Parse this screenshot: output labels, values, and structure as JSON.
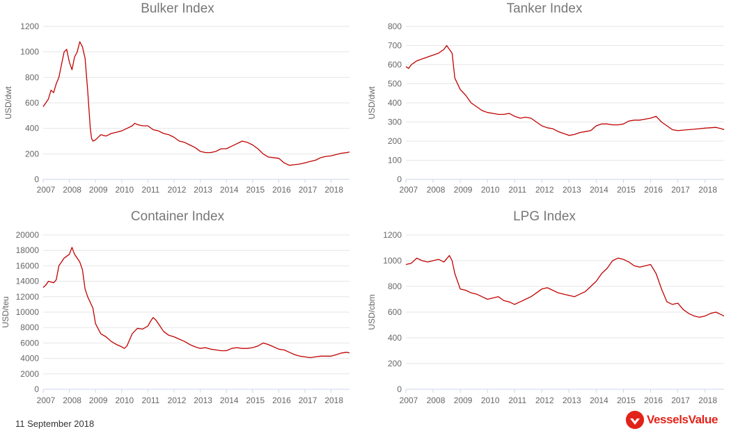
{
  "footer": {
    "date": "11 September 2018",
    "brand": "VesselsValue"
  },
  "colors": {
    "line": "#c00000",
    "grid": "#e6e6e6",
    "axis_text": "#666666",
    "title_text": "#777777",
    "brand": "#e2231a"
  },
  "chart_data": [
    {
      "type": "line",
      "title": "Bulker Index",
      "ylabel": "USD/dwt",
      "xlabel": "",
      "ylim": [
        0,
        1200
      ],
      "yticks": [
        0,
        200,
        400,
        600,
        800,
        1000,
        1200
      ],
      "xlim": [
        2007.0,
        2018.7
      ],
      "xticks": [
        "2007",
        "2008",
        "2009",
        "2010",
        "2011",
        "2012",
        "2013",
        "2014",
        "2015",
        "2016",
        "2017",
        "2018"
      ],
      "grid": true,
      "series": [
        {
          "x": [
            2007.0,
            2007.1,
            2007.2,
            2007.3,
            2007.4,
            2007.5,
            2007.6,
            2007.7,
            2007.8,
            2007.9,
            2008.0,
            2008.1,
            2008.2,
            2008.3,
            2008.4,
            2008.5,
            2008.6,
            2008.7,
            2008.8,
            2008.85,
            2008.9,
            2009.0,
            2009.2,
            2009.4,
            2009.6,
            2009.8,
            2010.0,
            2010.2,
            2010.4,
            2010.5,
            2010.6,
            2010.8,
            2011.0,
            2011.2,
            2011.4,
            2011.6,
            2011.8,
            2012.0,
            2012.2,
            2012.4,
            2012.6,
            2012.8,
            2013.0,
            2013.2,
            2013.4,
            2013.6,
            2013.8,
            2014.0,
            2014.2,
            2014.4,
            2014.6,
            2014.8,
            2015.0,
            2015.2,
            2015.4,
            2015.6,
            2015.8,
            2016.0,
            2016.2,
            2016.4,
            2016.6,
            2016.8,
            2017.0,
            2017.2,
            2017.4,
            2017.6,
            2017.8,
            2018.0,
            2018.2,
            2018.4,
            2018.6,
            2018.7
          ],
          "y": [
            570,
            600,
            630,
            700,
            680,
            750,
            800,
            900,
            1000,
            1020,
            920,
            860,
            960,
            1000,
            1080,
            1040,
            950,
            700,
            400,
            320,
            300,
            310,
            350,
            340,
            360,
            370,
            380,
            400,
            420,
            440,
            430,
            420,
            420,
            390,
            380,
            360,
            350,
            330,
            300,
            290,
            270,
            250,
            220,
            210,
            210,
            220,
            240,
            240,
            260,
            280,
            300,
            290,
            270,
            240,
            200,
            175,
            170,
            165,
            130,
            110,
            115,
            120,
            130,
            140,
            150,
            170,
            180,
            185,
            195,
            205,
            210,
            215
          ]
        }
      ]
    },
    {
      "type": "line",
      "title": "Tanker Index",
      "ylabel": "USD/dwt",
      "xlabel": "",
      "ylim": [
        0,
        800
      ],
      "yticks": [
        0,
        100,
        200,
        300,
        400,
        500,
        600,
        700,
        800
      ],
      "xlim": [
        2007.0,
        2018.7
      ],
      "xticks": [
        "2007",
        "2008",
        "2009",
        "2010",
        "2011",
        "2012",
        "2013",
        "2014",
        "2015",
        "2016",
        "2017",
        "2018"
      ],
      "grid": true,
      "series": [
        {
          "x": [
            2007.0,
            2007.1,
            2007.2,
            2007.3,
            2007.4,
            2007.6,
            2007.8,
            2008.0,
            2008.2,
            2008.4,
            2008.5,
            2008.6,
            2008.7,
            2008.8,
            2009.0,
            2009.2,
            2009.4,
            2009.6,
            2009.8,
            2010.0,
            2010.2,
            2010.4,
            2010.6,
            2010.8,
            2011.0,
            2011.2,
            2011.4,
            2011.6,
            2011.8,
            2012.0,
            2012.2,
            2012.4,
            2012.6,
            2012.8,
            2013.0,
            2013.2,
            2013.4,
            2013.6,
            2013.8,
            2014.0,
            2014.2,
            2014.4,
            2014.6,
            2014.8,
            2015.0,
            2015.2,
            2015.4,
            2015.6,
            2015.8,
            2016.0,
            2016.2,
            2016.4,
            2016.6,
            2016.8,
            2017.0,
            2017.2,
            2017.4,
            2017.6,
            2017.8,
            2018.0,
            2018.2,
            2018.4,
            2018.6,
            2018.7
          ],
          "y": [
            590,
            580,
            600,
            610,
            620,
            630,
            640,
            650,
            660,
            680,
            700,
            680,
            660,
            530,
            470,
            440,
            400,
            380,
            360,
            350,
            345,
            340,
            340,
            345,
            330,
            320,
            325,
            320,
            300,
            280,
            270,
            265,
            250,
            240,
            230,
            235,
            245,
            250,
            255,
            280,
            290,
            290,
            285,
            285,
            290,
            305,
            310,
            310,
            315,
            320,
            330,
            300,
            280,
            260,
            255,
            258,
            260,
            262,
            265,
            268,
            270,
            272,
            265,
            260
          ]
        }
      ]
    },
    {
      "type": "line",
      "title": "Container Index",
      "ylabel": "USD/teu",
      "xlabel": "",
      "ylim": [
        0,
        20000
      ],
      "yticks": [
        0,
        2000,
        4000,
        6000,
        8000,
        10000,
        12000,
        14000,
        16000,
        18000,
        20000
      ],
      "xlim": [
        2007.0,
        2018.7
      ],
      "xticks": [
        "2007",
        "2008",
        "2009",
        "2010",
        "2011",
        "2012",
        "2013",
        "2014",
        "2015",
        "2016",
        "2017",
        "2018"
      ],
      "grid": true,
      "series": [
        {
          "x": [
            2007.0,
            2007.1,
            2007.2,
            2007.4,
            2007.5,
            2007.6,
            2007.8,
            2008.0,
            2008.1,
            2008.2,
            2008.4,
            2008.5,
            2008.6,
            2008.7,
            2008.9,
            2009.0,
            2009.2,
            2009.4,
            2009.6,
            2009.8,
            2010.0,
            2010.1,
            2010.2,
            2010.4,
            2010.6,
            2010.8,
            2011.0,
            2011.1,
            2011.2,
            2011.3,
            2011.4,
            2011.6,
            2011.8,
            2012.0,
            2012.2,
            2012.4,
            2012.6,
            2012.8,
            2013.0,
            2013.2,
            2013.4,
            2013.6,
            2013.8,
            2014.0,
            2014.2,
            2014.4,
            2014.6,
            2014.8,
            2015.0,
            2015.2,
            2015.4,
            2015.6,
            2015.8,
            2016.0,
            2016.2,
            2016.4,
            2016.6,
            2016.8,
            2017.0,
            2017.2,
            2017.4,
            2017.6,
            2017.8,
            2018.0,
            2018.2,
            2018.4,
            2018.6,
            2018.7
          ],
          "y": [
            13200,
            13500,
            14000,
            13800,
            14200,
            16000,
            17000,
            17500,
            18400,
            17500,
            16500,
            15500,
            13000,
            12000,
            10500,
            8500,
            7200,
            6800,
            6200,
            5800,
            5500,
            5300,
            5600,
            7200,
            7900,
            7800,
            8200,
            8800,
            9300,
            9000,
            8500,
            7500,
            7000,
            6800,
            6500,
            6200,
            5800,
            5500,
            5300,
            5400,
            5200,
            5100,
            5000,
            5000,
            5300,
            5400,
            5300,
            5300,
            5400,
            5600,
            6000,
            5800,
            5500,
            5200,
            5100,
            4800,
            4500,
            4300,
            4200,
            4100,
            4200,
            4300,
            4300,
            4300,
            4500,
            4700,
            4800,
            4700
          ]
        }
      ]
    },
    {
      "type": "line",
      "title": "LPG Index",
      "ylabel": "USD/cbm",
      "xlabel": "",
      "ylim": [
        0,
        1200
      ],
      "yticks": [
        0,
        200,
        400,
        600,
        800,
        1000,
        1200
      ],
      "xlim": [
        2007.0,
        2018.7
      ],
      "xticks": [
        "2007",
        "2008",
        "2009",
        "2010",
        "2011",
        "2012",
        "2013",
        "2014",
        "2015",
        "2016",
        "2017",
        "2018"
      ],
      "grid": true,
      "series": [
        {
          "x": [
            2007.0,
            2007.2,
            2007.4,
            2007.6,
            2007.8,
            2008.0,
            2008.2,
            2008.4,
            2008.6,
            2008.7,
            2008.8,
            2009.0,
            2009.2,
            2009.4,
            2009.6,
            2009.8,
            2010.0,
            2010.2,
            2010.4,
            2010.6,
            2010.8,
            2011.0,
            2011.2,
            2011.4,
            2011.6,
            2011.8,
            2012.0,
            2012.2,
            2012.4,
            2012.6,
            2012.8,
            2013.0,
            2013.2,
            2013.4,
            2013.6,
            2013.8,
            2014.0,
            2014.2,
            2014.4,
            2014.6,
            2014.8,
            2015.0,
            2015.2,
            2015.4,
            2015.6,
            2015.8,
            2016.0,
            2016.2,
            2016.4,
            2016.6,
            2016.8,
            2017.0,
            2017.2,
            2017.4,
            2017.6,
            2017.8,
            2018.0,
            2018.2,
            2018.4,
            2018.6,
            2018.7
          ],
          "y": [
            970,
            980,
            1020,
            1000,
            990,
            1000,
            1010,
            990,
            1040,
            1000,
            900,
            780,
            770,
            750,
            740,
            720,
            700,
            710,
            720,
            690,
            680,
            660,
            680,
            700,
            720,
            750,
            780,
            790,
            770,
            750,
            740,
            730,
            720,
            740,
            760,
            800,
            840,
            900,
            940,
            1000,
            1020,
            1010,
            990,
            960,
            950,
            960,
            970,
            900,
            780,
            680,
            660,
            670,
            620,
            590,
            570,
            560,
            570,
            590,
            600,
            580,
            570
          ]
        }
      ]
    }
  ]
}
